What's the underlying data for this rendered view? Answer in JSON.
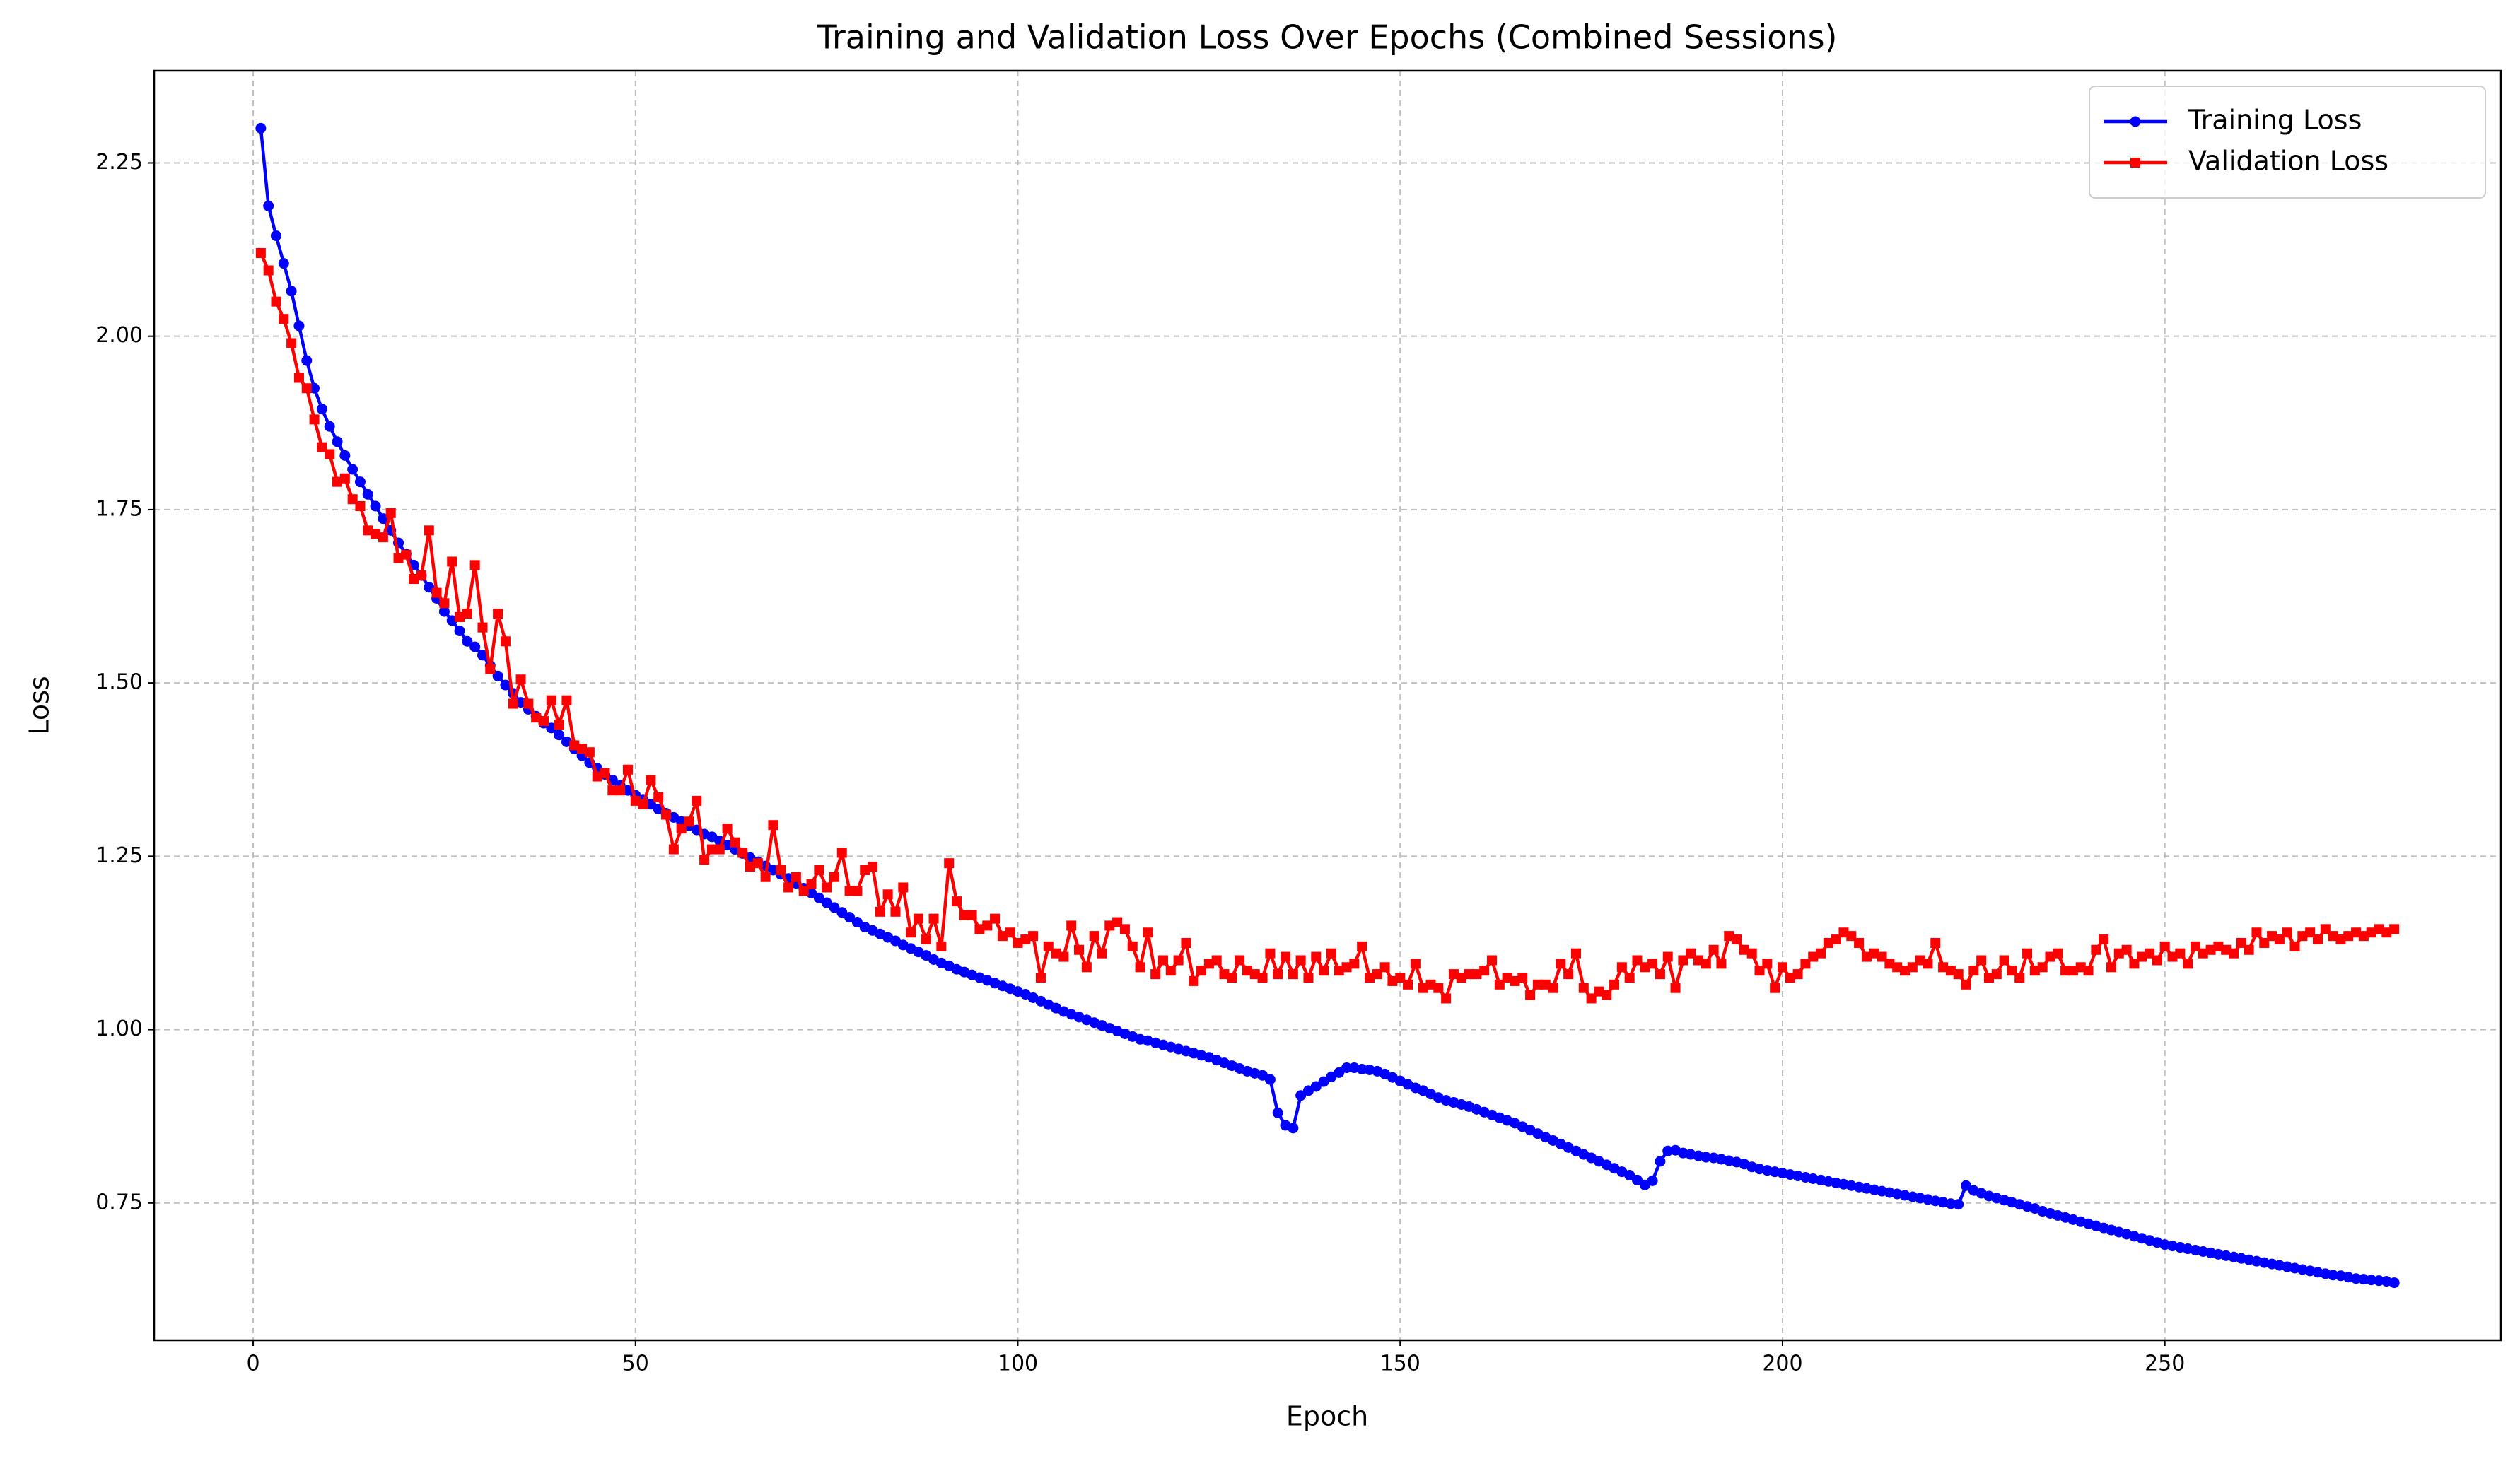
{
  "chart_data": {
    "type": "line",
    "title": "Training and Validation Loss Over Epochs (Combined Sessions)",
    "x_label": "Epoch",
    "y_label": "Loss",
    "x": [
      1,
      2,
      3,
      4,
      5,
      6,
      7,
      8,
      9,
      10,
      11,
      12,
      13,
      14,
      15,
      16,
      17,
      18,
      19,
      20,
      21,
      22,
      23,
      24,
      25,
      26,
      27,
      28,
      29,
      30,
      31,
      32,
      33,
      34,
      35,
      36,
      37,
      38,
      39,
      40,
      41,
      42,
      43,
      44,
      45,
      46,
      47,
      48,
      49,
      50,
      51,
      52,
      53,
      54,
      55,
      56,
      57,
      58,
      59,
      60,
      61,
      62,
      63,
      64,
      65,
      66,
      67,
      68,
      69,
      70,
      71,
      72,
      73,
      74,
      75,
      76,
      77,
      78,
      79,
      80,
      81,
      82,
      83,
      84,
      85,
      86,
      87,
      88,
      89,
      90,
      91,
      92,
      93,
      94,
      95,
      96,
      97,
      98,
      99,
      100,
      101,
      102,
      103,
      104,
      105,
      106,
      107,
      108,
      109,
      110,
      111,
      112,
      113,
      114,
      115,
      116,
      117,
      118,
      119,
      120,
      121,
      122,
      123,
      124,
      125,
      126,
      127,
      128,
      129,
      130,
      131,
      132,
      133,
      134,
      135,
      136,
      137,
      138,
      139,
      140,
      141,
      142,
      143,
      144,
      145,
      146,
      147,
      148,
      149,
      150,
      151,
      152,
      153,
      154,
      155,
      156,
      157,
      158,
      159,
      160,
      161,
      162,
      163,
      164,
      165,
      166,
      167,
      168,
      169,
      170,
      171,
      172,
      173,
      174,
      175,
      176,
      177,
      178,
      179,
      180,
      181,
      182,
      183,
      184,
      185,
      186,
      187,
      188,
      189,
      190,
      191,
      192,
      193,
      194,
      195,
      196,
      197,
      198,
      199,
      200,
      201,
      202,
      203,
      204,
      205,
      206,
      207,
      208,
      209,
      210,
      211,
      212,
      213,
      214,
      215,
      216,
      217,
      218,
      219,
      220,
      221,
      222,
      223,
      224,
      225,
      226,
      227,
      228,
      229,
      230,
      231,
      232,
      233,
      234,
      235,
      236,
      237,
      238,
      239,
      240,
      241,
      242,
      243,
      244,
      245,
      246,
      247,
      248,
      249,
      250,
      251,
      252,
      253,
      254,
      255,
      256,
      257,
      258,
      259,
      260,
      261,
      262,
      263,
      264,
      265,
      266,
      267,
      268,
      269,
      270,
      271,
      272,
      273,
      274,
      275,
      276,
      277,
      278,
      279,
      280
    ],
    "series": [
      {
        "name": "Training Loss",
        "color": "#0000ff",
        "marker": "circle",
        "values": [
          2.3,
          2.188,
          2.145,
          2.105,
          2.065,
          2.015,
          1.965,
          1.925,
          1.895,
          1.87,
          1.848,
          1.828,
          1.808,
          1.79,
          1.772,
          1.755,
          1.737,
          1.72,
          1.702,
          1.686,
          1.67,
          1.655,
          1.638,
          1.622,
          1.603,
          1.59,
          1.575,
          1.56,
          1.552,
          1.54,
          1.525,
          1.51,
          1.497,
          1.485,
          1.472,
          1.462,
          1.452,
          1.442,
          1.435,
          1.425,
          1.415,
          1.405,
          1.395,
          1.385,
          1.377,
          1.368,
          1.36,
          1.352,
          1.345,
          1.338,
          1.332,
          1.325,
          1.318,
          1.312,
          1.306,
          1.3,
          1.294,
          1.288,
          1.282,
          1.278,
          1.272,
          1.266,
          1.26,
          1.254,
          1.248,
          1.242,
          1.236,
          1.23,
          1.224,
          1.218,
          1.211,
          1.204,
          1.197,
          1.19,
          1.183,
          1.176,
          1.169,
          1.162,
          1.155,
          1.148,
          1.143,
          1.138,
          1.133,
          1.128,
          1.122,
          1.117,
          1.112,
          1.107,
          1.101,
          1.096,
          1.092,
          1.087,
          1.083,
          1.079,
          1.075,
          1.071,
          1.067,
          1.063,
          1.059,
          1.055,
          1.051,
          1.046,
          1.041,
          1.036,
          1.031,
          1.026,
          1.022,
          1.018,
          1.014,
          1.01,
          1.006,
          1.002,
          0.998,
          0.994,
          0.99,
          0.986,
          0.984,
          0.981,
          0.978,
          0.975,
          0.972,
          0.969,
          0.966,
          0.963,
          0.96,
          0.956,
          0.952,
          0.948,
          0.944,
          0.94,
          0.937,
          0.934,
          0.928,
          0.88,
          0.862,
          0.858,
          0.905,
          0.912,
          0.918,
          0.925,
          0.932,
          0.938,
          0.945,
          0.945,
          0.943,
          0.942,
          0.94,
          0.936,
          0.931,
          0.926,
          0.921,
          0.916,
          0.912,
          0.907,
          0.902,
          0.898,
          0.895,
          0.892,
          0.889,
          0.885,
          0.881,
          0.877,
          0.873,
          0.869,
          0.865,
          0.86,
          0.855,
          0.85,
          0.845,
          0.84,
          0.835,
          0.83,
          0.825,
          0.82,
          0.815,
          0.81,
          0.805,
          0.8,
          0.795,
          0.79,
          0.783,
          0.776,
          0.782,
          0.81,
          0.825,
          0.826,
          0.822,
          0.82,
          0.818,
          0.816,
          0.815,
          0.813,
          0.811,
          0.809,
          0.806,
          0.802,
          0.799,
          0.797,
          0.795,
          0.793,
          0.791,
          0.789,
          0.787,
          0.785,
          0.783,
          0.781,
          0.779,
          0.777,
          0.775,
          0.773,
          0.771,
          0.769,
          0.767,
          0.765,
          0.763,
          0.761,
          0.759,
          0.757,
          0.755,
          0.753,
          0.751,
          0.749,
          0.748,
          0.775,
          0.768,
          0.764,
          0.76,
          0.757,
          0.754,
          0.751,
          0.748,
          0.745,
          0.742,
          0.738,
          0.735,
          0.732,
          0.729,
          0.726,
          0.723,
          0.72,
          0.717,
          0.714,
          0.711,
          0.708,
          0.705,
          0.702,
          0.699,
          0.696,
          0.693,
          0.69,
          0.688,
          0.686,
          0.684,
          0.682,
          0.68,
          0.678,
          0.676,
          0.674,
          0.672,
          0.67,
          0.668,
          0.666,
          0.664,
          0.662,
          0.66,
          0.658,
          0.656,
          0.654,
          0.652,
          0.65,
          0.648,
          0.646,
          0.645,
          0.643,
          0.641,
          0.64,
          0.639,
          0.638,
          0.637,
          0.635
        ]
      },
      {
        "name": "Validation Loss",
        "color": "#ff0000",
        "marker": "square",
        "values": [
          2.12,
          2.095,
          2.05,
          2.025,
          1.99,
          1.94,
          1.925,
          1.88,
          1.84,
          1.83,
          1.79,
          1.795,
          1.765,
          1.755,
          1.72,
          1.715,
          1.71,
          1.745,
          1.68,
          1.685,
          1.65,
          1.655,
          1.72,
          1.63,
          1.615,
          1.675,
          1.595,
          1.6,
          1.67,
          1.58,
          1.52,
          1.6,
          1.56,
          1.47,
          1.505,
          1.47,
          1.45,
          1.445,
          1.475,
          1.44,
          1.475,
          1.41,
          1.405,
          1.4,
          1.365,
          1.37,
          1.345,
          1.345,
          1.375,
          1.33,
          1.325,
          1.36,
          1.335,
          1.31,
          1.26,
          1.29,
          1.3,
          1.33,
          1.245,
          1.26,
          1.26,
          1.29,
          1.27,
          1.255,
          1.235,
          1.24,
          1.22,
          1.295,
          1.23,
          1.205,
          1.22,
          1.2,
          1.21,
          1.23,
          1.205,
          1.22,
          1.255,
          1.2,
          1.2,
          1.23,
          1.235,
          1.17,
          1.195,
          1.17,
          1.205,
          1.14,
          1.16,
          1.13,
          1.16,
          1.12,
          1.24,
          1.185,
          1.165,
          1.165,
          1.145,
          1.15,
          1.16,
          1.135,
          1.14,
          1.125,
          1.13,
          1.135,
          1.075,
          1.12,
          1.11,
          1.105,
          1.15,
          1.115,
          1.09,
          1.135,
          1.11,
          1.15,
          1.155,
          1.145,
          1.12,
          1.09,
          1.14,
          1.08,
          1.1,
          1.085,
          1.1,
          1.125,
          1.07,
          1.085,
          1.095,
          1.1,
          1.08,
          1.075,
          1.1,
          1.085,
          1.08,
          1.075,
          1.11,
          1.08,
          1.105,
          1.08,
          1.1,
          1.075,
          1.105,
          1.085,
          1.11,
          1.085,
          1.09,
          1.095,
          1.12,
          1.075,
          1.08,
          1.09,
          1.07,
          1.075,
          1.065,
          1.095,
          1.06,
          1.065,
          1.06,
          1.045,
          1.08,
          1.075,
          1.08,
          1.08,
          1.085,
          1.1,
          1.065,
          1.075,
          1.07,
          1.075,
          1.05,
          1.065,
          1.065,
          1.06,
          1.095,
          1.08,
          1.11,
          1.06,
          1.045,
          1.055,
          1.05,
          1.065,
          1.09,
          1.075,
          1.1,
          1.09,
          1.095,
          1.08,
          1.105,
          1.06,
          1.1,
          1.11,
          1.1,
          1.095,
          1.115,
          1.095,
          1.135,
          1.13,
          1.115,
          1.11,
          1.085,
          1.095,
          1.06,
          1.09,
          1.075,
          1.08,
          1.095,
          1.105,
          1.11,
          1.125,
          1.13,
          1.14,
          1.135,
          1.125,
          1.105,
          1.11,
          1.105,
          1.095,
          1.09,
          1.085,
          1.09,
          1.1,
          1.095,
          1.125,
          1.09,
          1.085,
          1.08,
          1.065,
          1.085,
          1.1,
          1.075,
          1.08,
          1.1,
          1.085,
          1.075,
          1.11,
          1.085,
          1.09,
          1.105,
          1.11,
          1.085,
          1.085,
          1.09,
          1.085,
          1.115,
          1.13,
          1.09,
          1.11,
          1.115,
          1.095,
          1.105,
          1.11,
          1.1,
          1.12,
          1.105,
          1.11,
          1.095,
          1.12,
          1.11,
          1.115,
          1.12,
          1.115,
          1.11,
          1.125,
          1.115,
          1.14,
          1.125,
          1.135,
          1.13,
          1.14,
          1.12,
          1.135,
          1.14,
          1.13,
          1.145,
          1.135,
          1.13,
          1.135,
          1.14,
          1.135,
          1.14,
          1.145,
          1.14,
          1.145
        ]
      }
    ],
    "xlim": [
      -12.95,
      293.95
    ],
    "xticks": [
      0,
      50,
      100,
      150,
      200,
      250
    ],
    "ylim": [
      0.552,
      2.383
    ],
    "yticks": [
      0.75,
      {
        "value": 1,
        "label": "1.00"
      },
      1.25,
      {
        "value": 1.5,
        "label": "1.50"
      },
      1.75,
      {
        "value": 2,
        "label": "2.00"
      },
      2.25
    ],
    "grid": true,
    "legend": "upper right"
  }
}
